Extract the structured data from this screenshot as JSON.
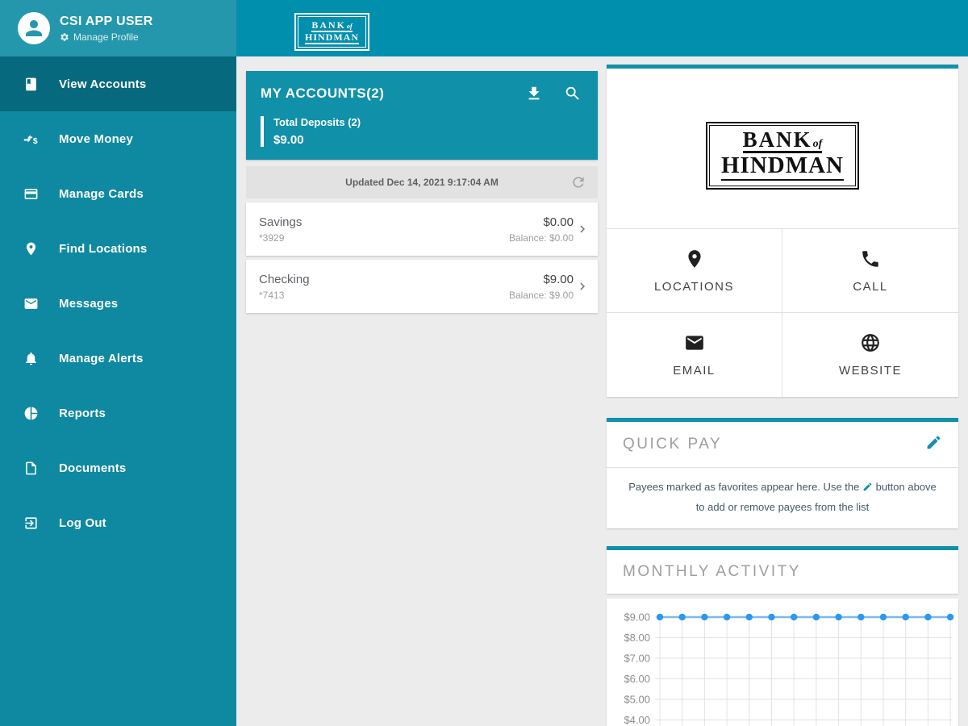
{
  "colors": {
    "topbar": "#008fad",
    "sidebar": "#0f89a1",
    "sidebar_header": "#2497ac",
    "sidebar_active": "#07697e",
    "accent_teal": "#1190a9",
    "chart_line": "#7db8f0",
    "chart_dot": "#2b98f0"
  },
  "brand": {
    "line1": "BANK",
    "of": "of",
    "line2": "HINDMAN"
  },
  "sidebar": {
    "user": {
      "name": "CSI APP USER",
      "manage_profile": "Manage Profile",
      "icons": [
        "avatar-person-icon",
        "gear-icon"
      ]
    },
    "items": [
      {
        "label": "View Accounts",
        "icon": "accounts-book-icon",
        "active": true
      },
      {
        "label": "Move Money",
        "icon": "move-money-icon",
        "active": false
      },
      {
        "label": "Manage Cards",
        "icon": "credit-card-icon",
        "active": false
      },
      {
        "label": "Find Locations",
        "icon": "location-pin-icon",
        "active": false
      },
      {
        "label": "Messages",
        "icon": "envelope-icon",
        "active": false
      },
      {
        "label": "Manage Alerts",
        "icon": "bell-icon",
        "active": false
      },
      {
        "label": "Reports",
        "icon": "pie-chart-icon",
        "active": false
      },
      {
        "label": "Documents",
        "icon": "document-icon",
        "active": false
      },
      {
        "label": "Log Out",
        "icon": "logout-icon",
        "active": false
      }
    ]
  },
  "accounts_panel": {
    "title": "MY ACCOUNTS(2)",
    "icons": [
      "download-icon",
      "search-icon"
    ],
    "total_label": "Total Deposits (2)",
    "total_value": "$9.00",
    "updated": "Updated Dec 14, 2021 9:17:04 AM",
    "updated_icon": "refresh-icon",
    "accounts": [
      {
        "name": "Savings",
        "number": "*3929",
        "amount": "$0.00",
        "balance": "Balance: $0.00"
      },
      {
        "name": "Checking",
        "number": "*7413",
        "amount": "$9.00",
        "balance": "Balance: $9.00"
      }
    ]
  },
  "contact": {
    "actions": [
      {
        "label": "LOCATIONS",
        "icon": "location-pin-icon"
      },
      {
        "label": "CALL",
        "icon": "phone-icon"
      },
      {
        "label": "EMAIL",
        "icon": "envelope-icon"
      },
      {
        "label": "WEBSITE",
        "icon": "globe-icon"
      }
    ]
  },
  "quick_pay": {
    "title": "QUICK PAY",
    "edit_icon": "pencil-edit-icon",
    "description_before": "Payees marked as favorites appear here. Use the",
    "description_after": "button above to add or remove payees from the list"
  },
  "monthly_activity": {
    "title": "MONTHLY ACTIVITY"
  },
  "chart_data": {
    "type": "line",
    "title": "MONTHLY ACTIVITY",
    "values": [
      9,
      9,
      9,
      9,
      9,
      9,
      9,
      9,
      9,
      9,
      9,
      9,
      9,
      9
    ],
    "y_ticks": [
      9,
      8,
      7,
      6,
      5,
      4
    ],
    "y_tick_labels": [
      "$9.00",
      "$8.00",
      "$7.00",
      "$6.00",
      "$5.00",
      "$4.00"
    ],
    "x_tick_labels_visible": false,
    "grid": true,
    "ylim_visible": [
      3.7,
      9.6
    ],
    "line_color": "#7db8f0",
    "dot_color": "#2b98f0"
  }
}
